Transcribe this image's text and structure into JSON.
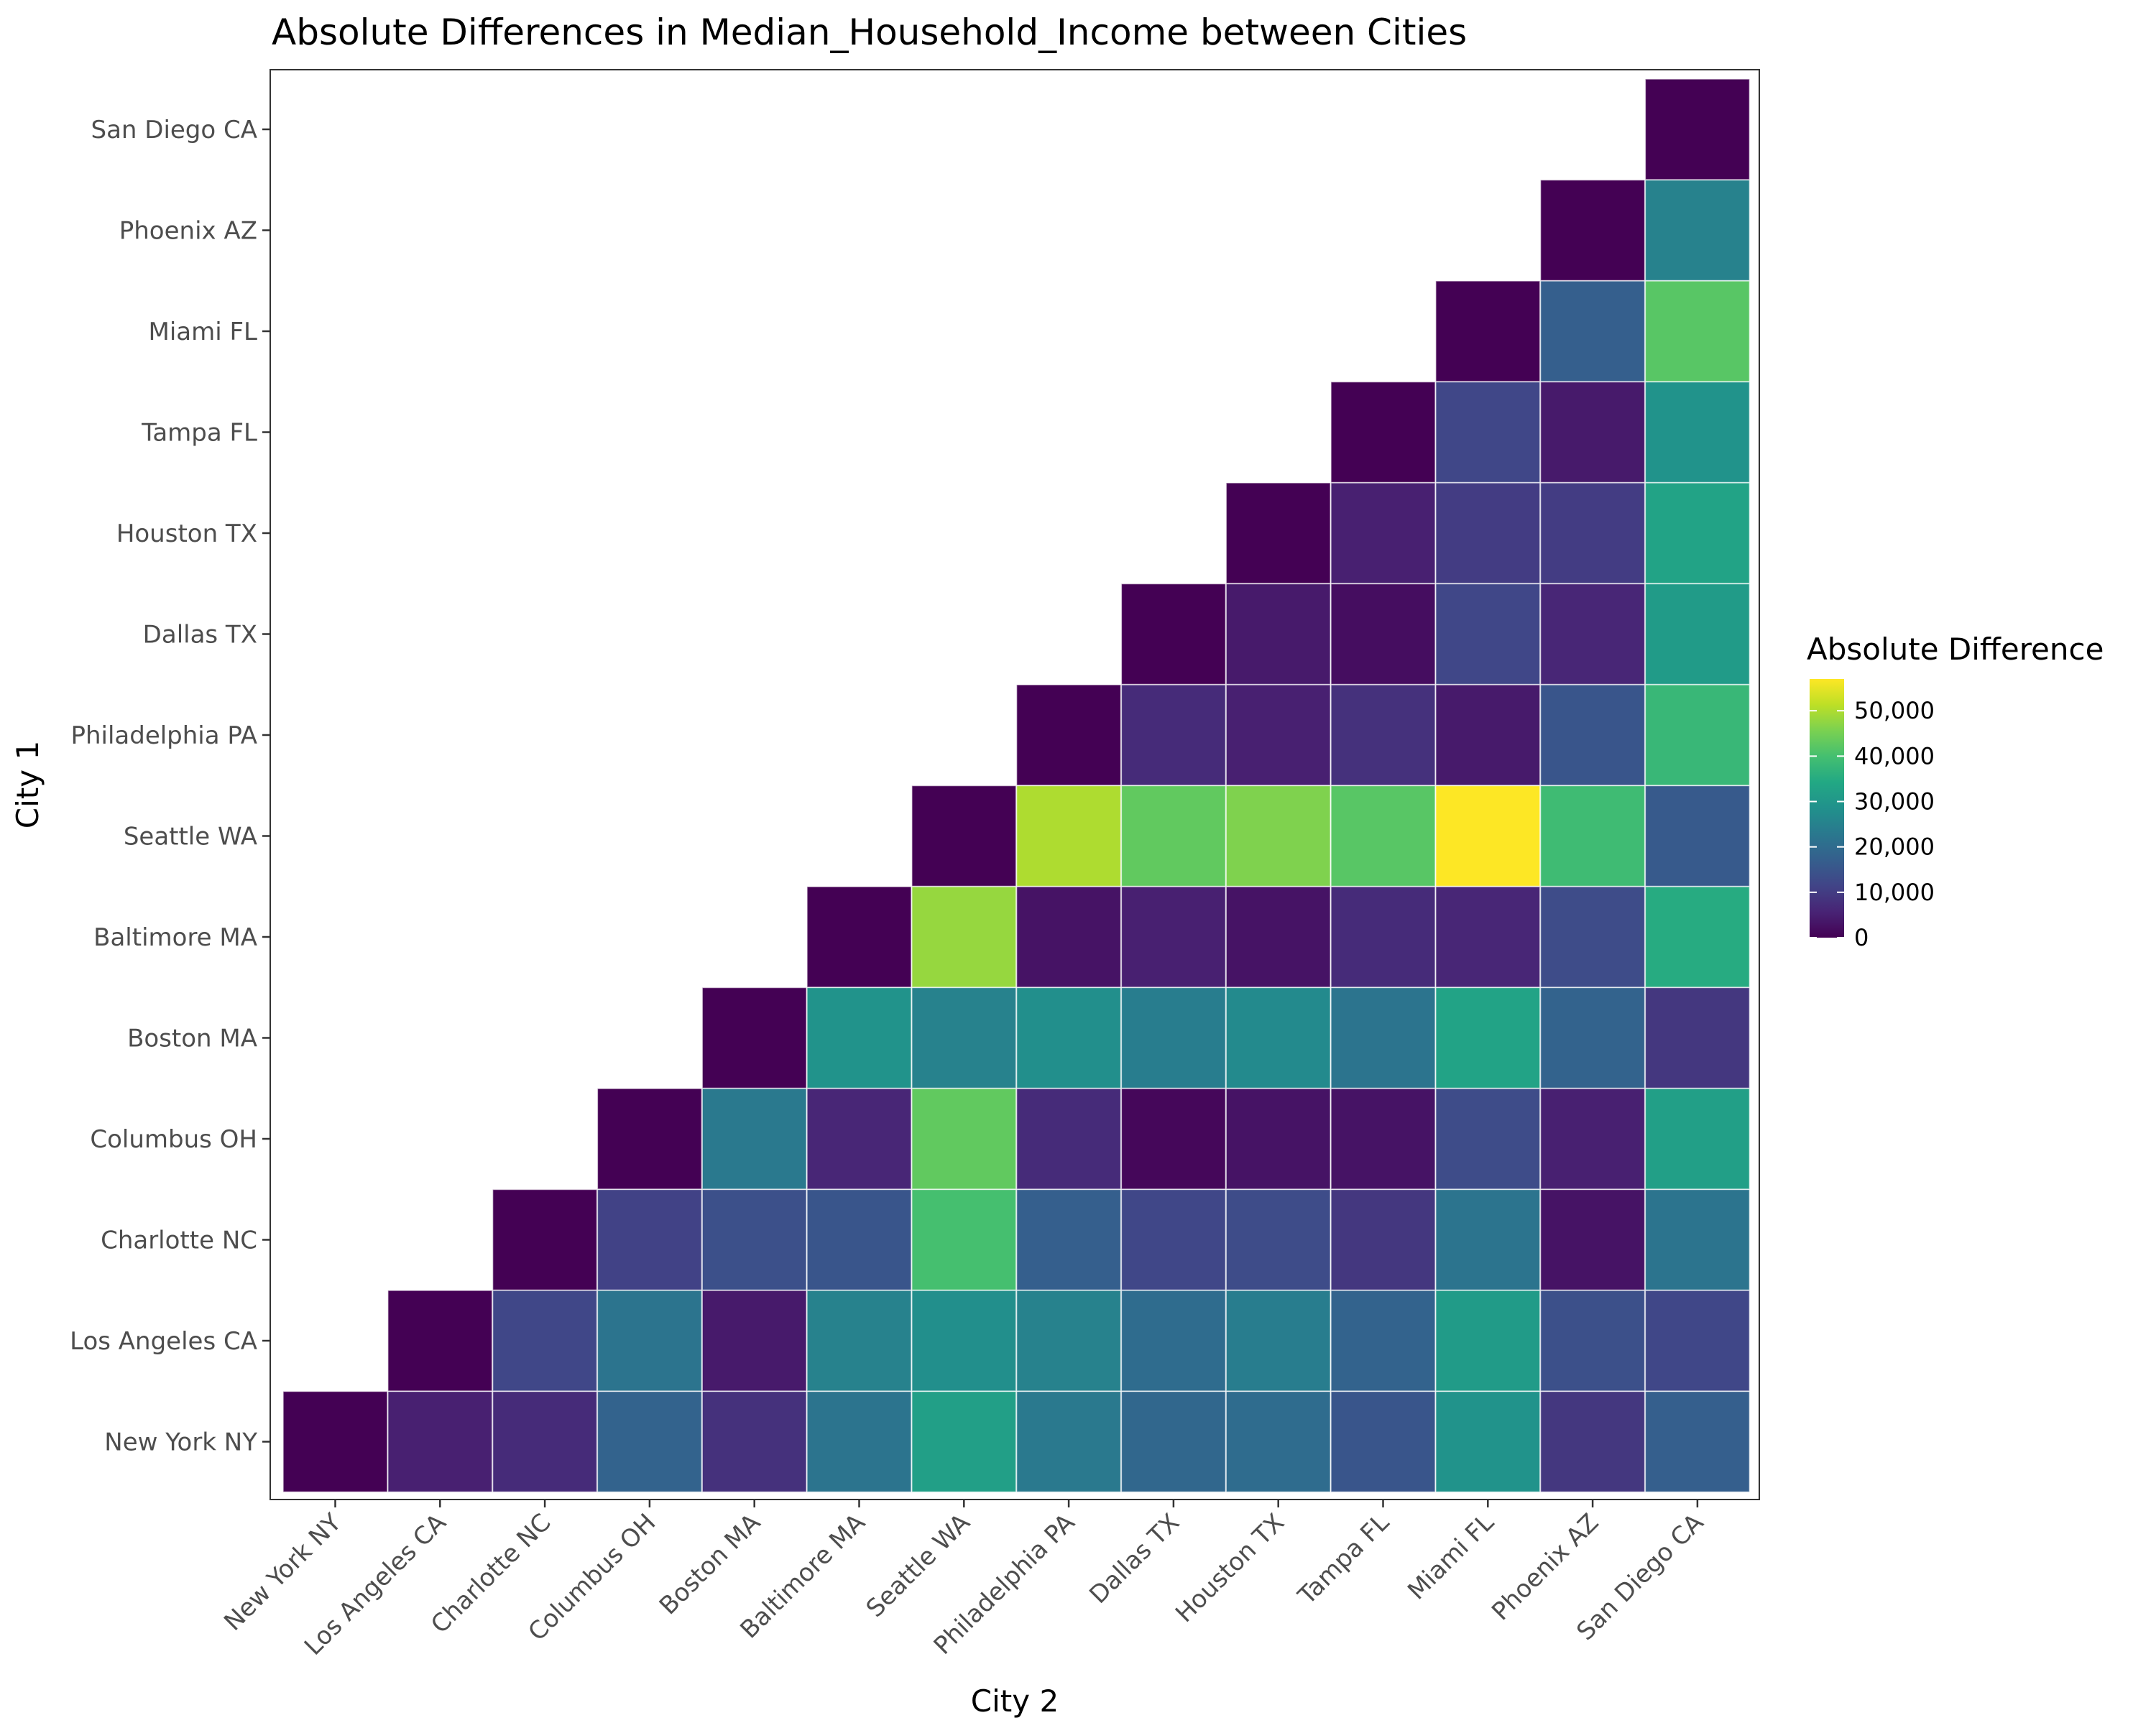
{
  "chart_data": {
    "type": "heatmap",
    "title": "Absolute Differences in Median_Household_Income between Cities",
    "xlabel": "City 2",
    "ylabel": "City 1",
    "legend_title": "Absolute Difference",
    "legend_position": "right",
    "colormap": "viridis",
    "color_range": [
      0,
      57000
    ],
    "legend_ticks": [
      {
        "value": 0,
        "label": "0"
      },
      {
        "value": 10000,
        "label": "10,000"
      },
      {
        "value": 20000,
        "label": "20,000"
      },
      {
        "value": 30000,
        "label": "30,000"
      },
      {
        "value": 40000,
        "label": "40,000"
      },
      {
        "value": 50000,
        "label": "50,000"
      }
    ],
    "cities": [
      "New York NY",
      "Los Angeles CA",
      "Charlotte NC",
      "Columbus OH",
      "Boston MA",
      "Baltimore MA",
      "Seattle WA",
      "Philadelphia PA",
      "Dallas TX",
      "Houston TX",
      "Tampa FL",
      "Miami FL",
      "Phoenix AZ",
      "San Diego CA"
    ],
    "matrix": [
      [
        0,
        5000,
        7000,
        18000,
        8000,
        22000,
        32000,
        23000,
        19000,
        20000,
        15000,
        29000,
        9000,
        17000
      ],
      [
        null,
        0,
        12000,
        22000,
        4000,
        25000,
        28000,
        25000,
        20000,
        24000,
        18000,
        31000,
        14000,
        12000
      ],
      [
        null,
        null,
        0,
        11000,
        14000,
        15000,
        40000,
        17000,
        12000,
        13000,
        9000,
        22000,
        3000,
        22000
      ],
      [
        null,
        null,
        null,
        0,
        23000,
        6000,
        43000,
        7000,
        1000,
        3000,
        3000,
        13000,
        5000,
        32000
      ],
      [
        null,
        null,
        null,
        null,
        0,
        29000,
        25000,
        28000,
        24000,
        27000,
        22000,
        33000,
        18000,
        9000
      ],
      [
        null,
        null,
        null,
        null,
        null,
        0,
        48000,
        3000,
        5000,
        3000,
        7000,
        6000,
        13000,
        35000
      ],
      [
        null,
        null,
        null,
        null,
        null,
        null,
        0,
        50000,
        43000,
        46000,
        42000,
        57000,
        39000,
        16000
      ],
      [
        null,
        null,
        null,
        null,
        null,
        null,
        null,
        0,
        7000,
        5000,
        8000,
        4000,
        15000,
        38000
      ],
      [
        null,
        null,
        null,
        null,
        null,
        null,
        null,
        null,
        0,
        4000,
        2000,
        12000,
        6000,
        31000
      ],
      [
        null,
        null,
        null,
        null,
        null,
        null,
        null,
        null,
        null,
        0,
        5000,
        10000,
        10000,
        33000
      ],
      [
        null,
        null,
        null,
        null,
        null,
        null,
        null,
        null,
        null,
        null,
        0,
        12000,
        4000,
        29000
      ],
      [
        null,
        null,
        null,
        null,
        null,
        null,
        null,
        null,
        null,
        null,
        null,
        0,
        17000,
        42000
      ],
      [
        null,
        null,
        null,
        null,
        null,
        null,
        null,
        null,
        null,
        null,
        null,
        null,
        0,
        25000
      ],
      [
        null,
        null,
        null,
        null,
        null,
        null,
        null,
        null,
        null,
        null,
        null,
        null,
        null,
        0
      ]
    ]
  }
}
